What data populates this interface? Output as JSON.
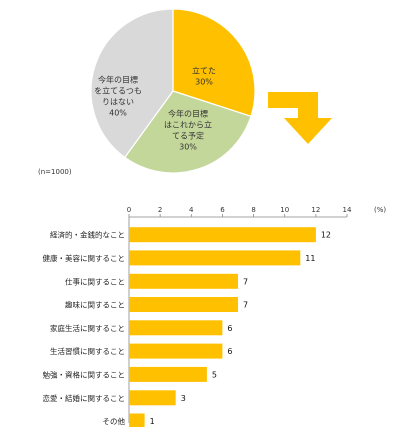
{
  "chart_data": [
    {
      "type": "pie",
      "note": "(n=1000)",
      "slices": [
        {
          "lines": [
            "立てた",
            "30%"
          ],
          "value": 30,
          "color": "#ffc000"
        },
        {
          "lines": [
            "今年の目標",
            "はこれから立",
            "てる予定",
            "30%"
          ],
          "value": 30,
          "color": "#c4d79b"
        },
        {
          "lines": [
            "今年の目標",
            "を立てるつも",
            "りはない",
            "40%"
          ],
          "value": 40,
          "color": "#d9d9d9"
        }
      ],
      "arrow_color": "#ffc000"
    },
    {
      "type": "bar",
      "orientation": "horizontal",
      "unit": "(%)",
      "xlim": [
        0,
        14
      ],
      "xticks": [
        0,
        2,
        4,
        6,
        8,
        10,
        12,
        14
      ],
      "categories": [
        "経済的・金銭的なこと",
        "健康・美容に関すること",
        "仕事に関すること",
        "趣味に関すること",
        "家庭生活に関すること",
        "生活習慣に関すること",
        "勉強・資格に関すること",
        "恋愛・結婚に関すること",
        "その他"
      ],
      "values": [
        12,
        11,
        7,
        7,
        6,
        6,
        5,
        3,
        1
      ],
      "bar_color": "#ffc000",
      "grid": false
    }
  ]
}
